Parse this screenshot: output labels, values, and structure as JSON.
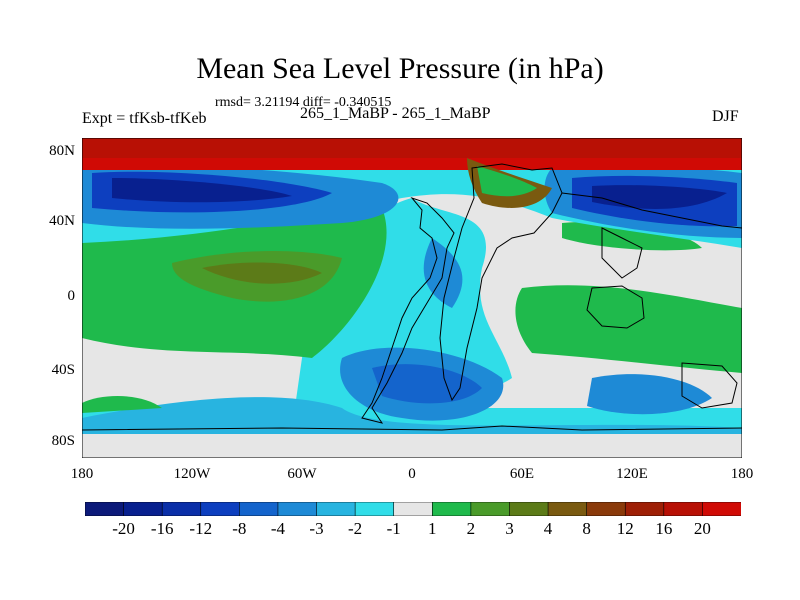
{
  "header": {
    "title": "Mean Sea Level Pressure (in hPa)",
    "stats": "rmsd= 3.21194 diff= -0.340515",
    "experiment": "Expt = tfKsb-tfKeb",
    "subtitle": "265_1_MaBP - 265_1_MaBP",
    "season": "DJF"
  },
  "map": {
    "lat_labels": [
      "80N",
      "40N",
      "0",
      "40S",
      "80S"
    ],
    "lon_labels": [
      "180",
      "120W",
      "60W",
      "0",
      "60E",
      "120E",
      "180"
    ]
  },
  "legend": {
    "labels": [
      "-20",
      "-16",
      "-12",
      "-8",
      "-4",
      "-3",
      "-2",
      "-1",
      "1",
      "2",
      "3",
      "4",
      "8",
      "12",
      "16",
      "20"
    ],
    "colors": [
      "#0c1a7a",
      "#08208f",
      "#0a2fa8",
      "#0d3fbf",
      "#1464cc",
      "#1e8ad6",
      "#28b4e0",
      "#30dde8",
      "#e6e6e6",
      "#1fba4c",
      "#4a9b2a",
      "#5c7b18",
      "#7a5a10",
      "#8a3a0a",
      "#9e1f06",
      "#b81005",
      "#d00a05"
    ]
  }
}
